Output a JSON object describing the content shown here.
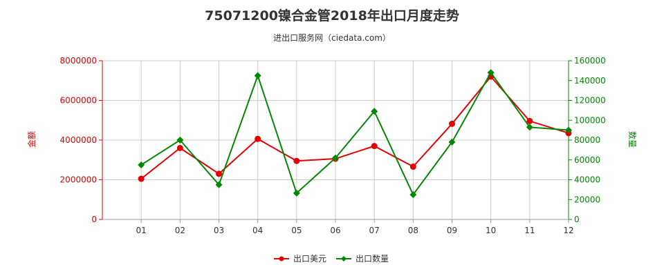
{
  "chart_data": {
    "type": "line",
    "title": "75071200镍合金管2018年出口月度走势",
    "subtitle": "进出口服务网（ciedata.com）",
    "categories": [
      "01",
      "02",
      "03",
      "04",
      "05",
      "06",
      "07",
      "08",
      "09",
      "10",
      "11",
      "12"
    ],
    "series": [
      {
        "name": "出口美元",
        "axis": "left",
        "color": "#e60000",
        "marker": "circle",
        "values": [
          2050000,
          3600000,
          2300000,
          4060000,
          2950000,
          3060000,
          3700000,
          2660000,
          4820000,
          7200000,
          4960000,
          4350000
        ]
      },
      {
        "name": "出口数量",
        "axis": "right",
        "color": "#008800",
        "marker": "diamond",
        "values": [
          55000,
          80000,
          35000,
          145000,
          26500,
          62000,
          109000,
          25000,
          78000,
          148000,
          93000,
          90000
        ]
      }
    ],
    "ylabel_left": "金额",
    "ylabel_right": "数量",
    "ylim_left": [
      0,
      8000000
    ],
    "ylim_right": [
      0,
      160000
    ],
    "yticks_left": [
      "0",
      "2000000",
      "4000000",
      "6000000",
      "8000000"
    ],
    "yticks_right": [
      "0",
      "20000",
      "40000",
      "60000",
      "80000",
      "100000",
      "120000",
      "140000",
      "160000"
    ],
    "grid": true,
    "legend_position": "bottom"
  }
}
